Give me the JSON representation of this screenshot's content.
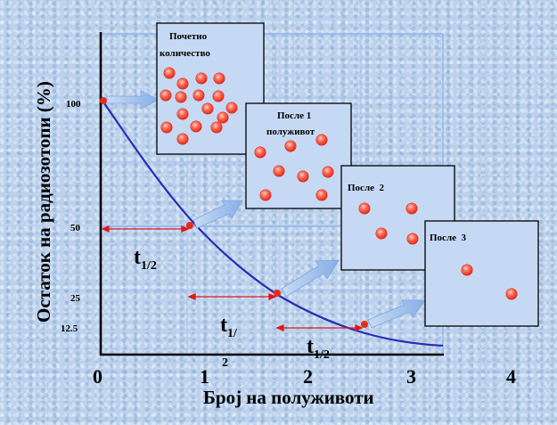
{
  "y_axis_title": "Остаток на радиозотопи (%)",
  "x_axis_title": "Број на полуживоти",
  "y_ticks": [
    "100",
    "50",
    "25",
    "12.5"
  ],
  "x_ticks": [
    "0",
    "1",
    "2",
    "3",
    "4"
  ],
  "boxes": [
    {
      "title_lines": [
        "Почетно",
        "количество"
      ],
      "atoms": 16
    },
    {
      "title_lines": [
        "После 1",
        "полуживот"
      ],
      "atoms": 8
    },
    {
      "title_lines": [
        "После  2"
      ],
      "atoms": 4
    },
    {
      "title_lines": [
        "После  3"
      ],
      "atoms": 2
    }
  ],
  "half_life_labels": [
    {
      "main": "t",
      "sub": "1/2"
    },
    {
      "main": "t",
      "sub": "1/",
      "extra": "2"
    },
    {
      "main": "t",
      "sub": "1/2"
    }
  ],
  "colors": {
    "curve": "#2b2bb5",
    "atom": "#ff5a4a",
    "arrow_red": "#e01818",
    "box_fill": "#c6d9f4",
    "grid": "#8fb3ee",
    "transfer_arrow": "#9ec0ec"
  }
}
